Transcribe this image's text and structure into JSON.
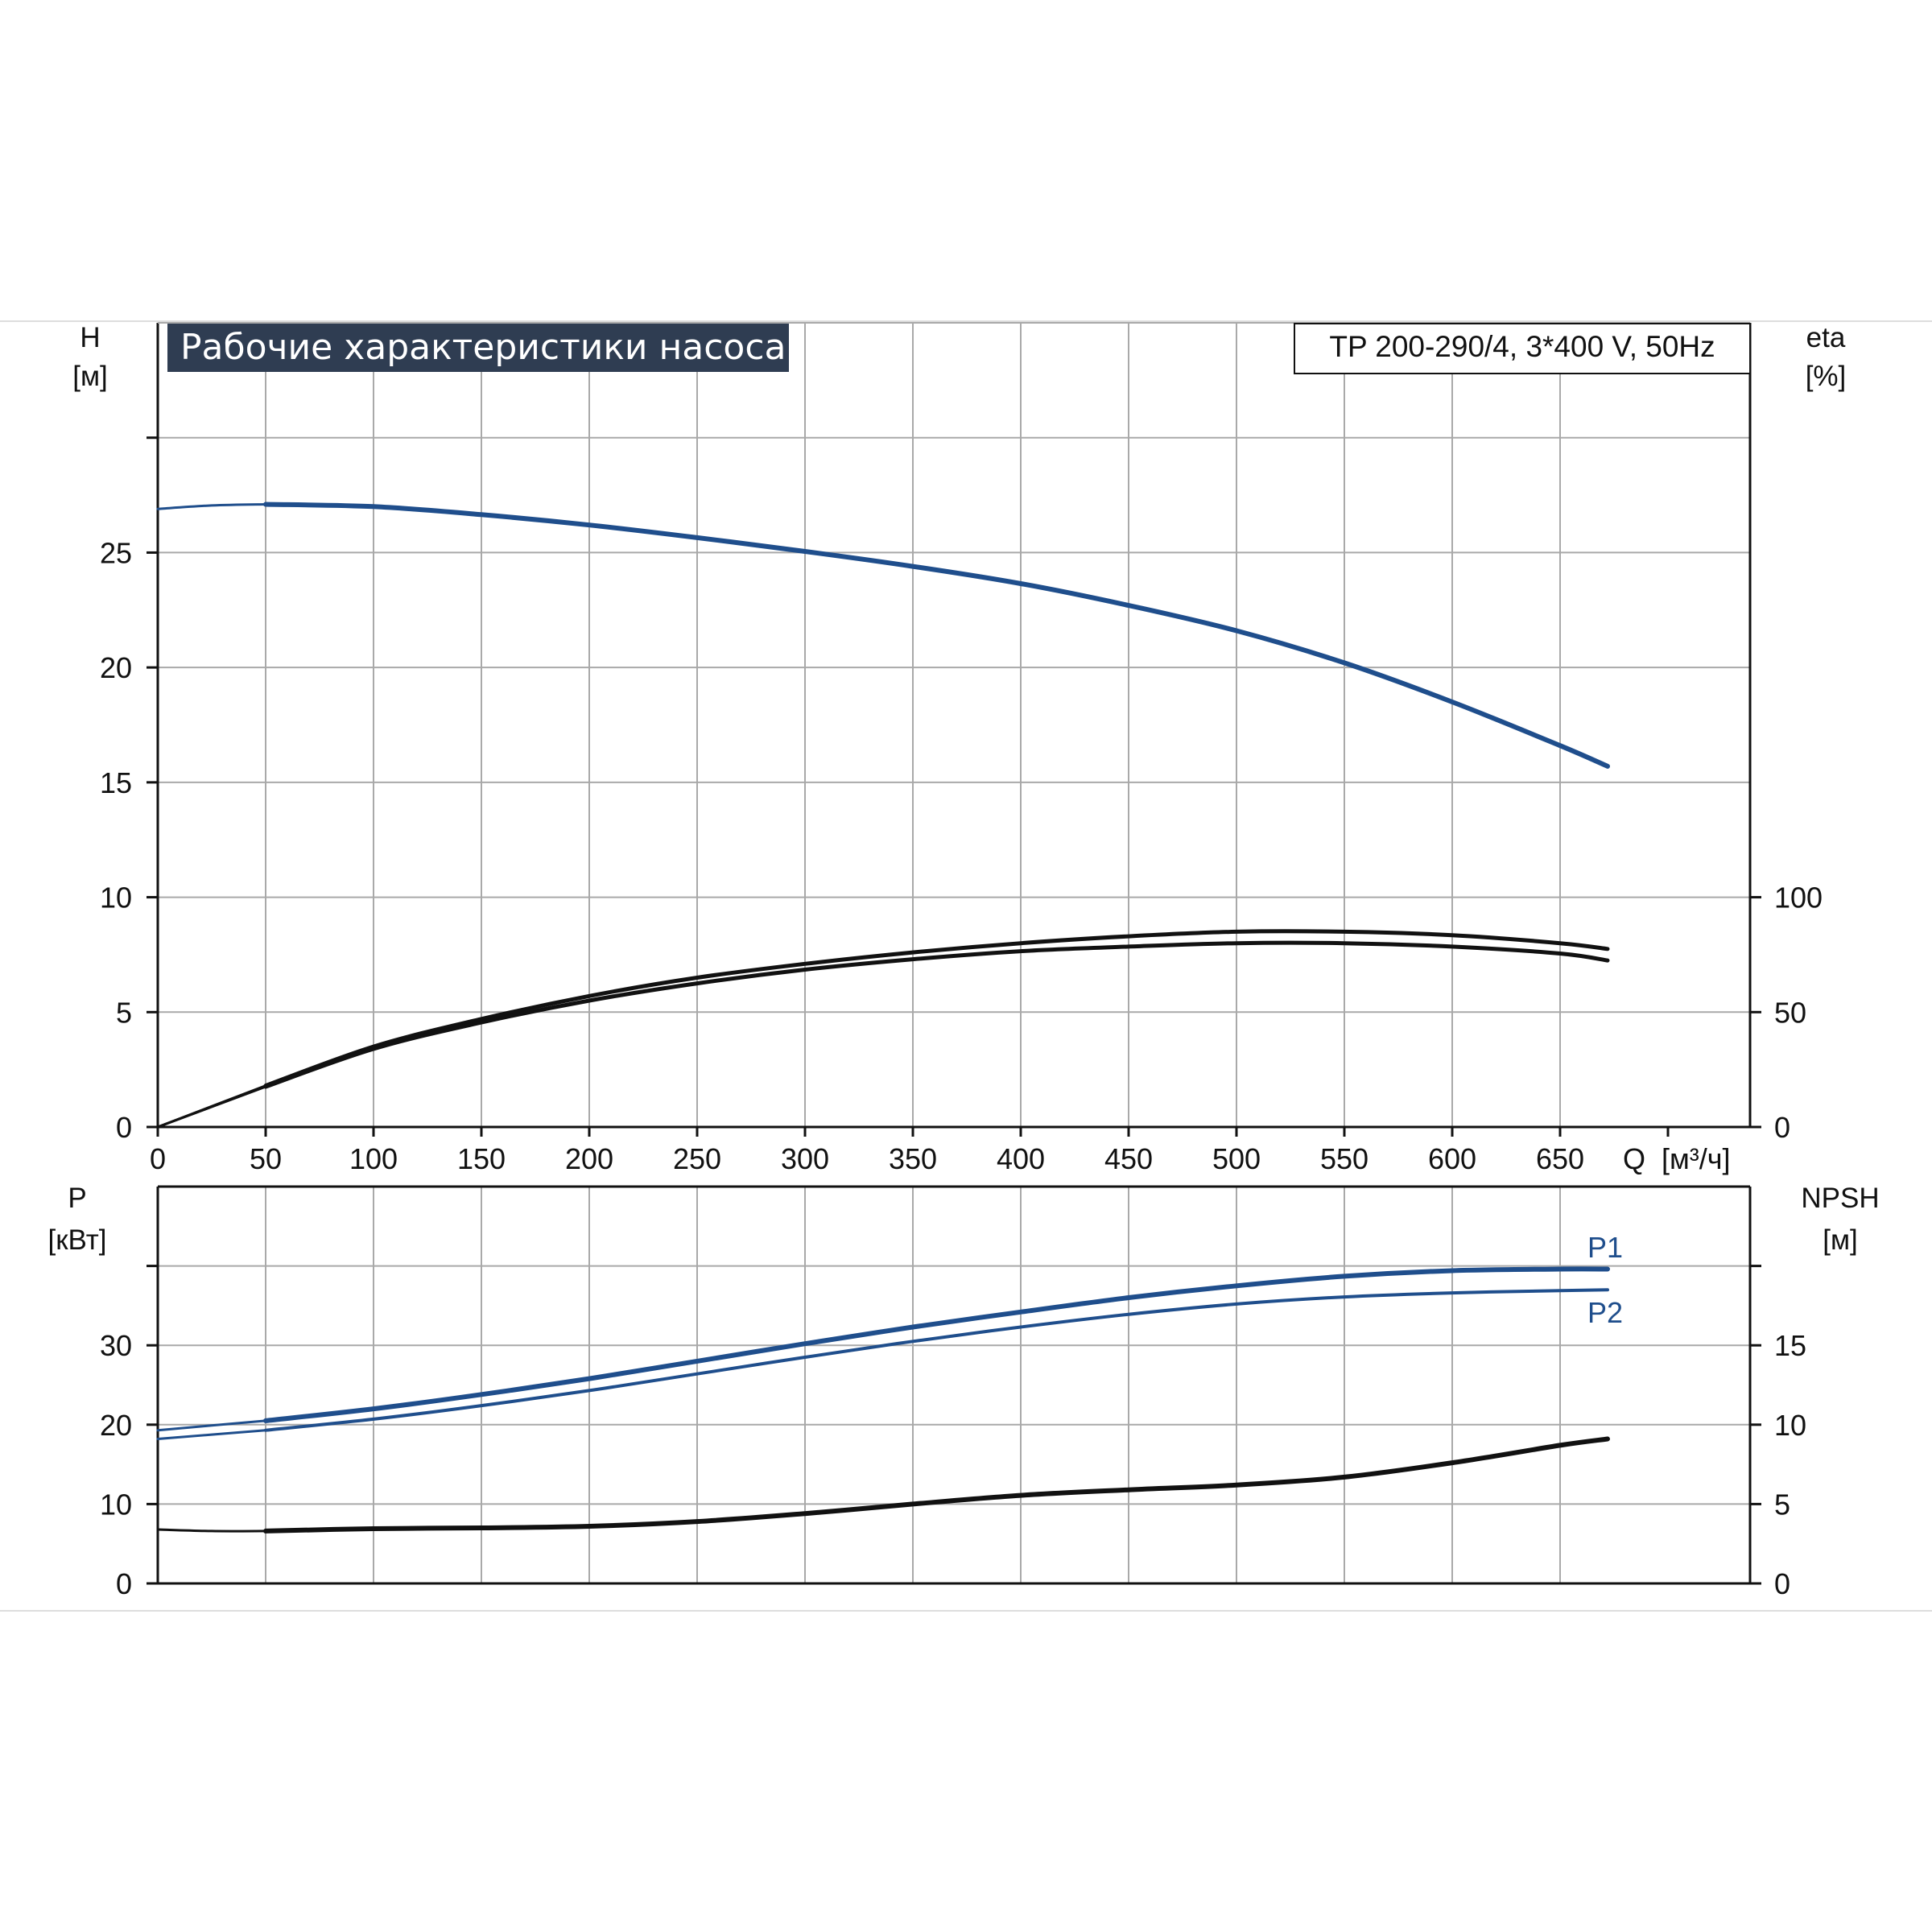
{
  "colors": {
    "blue": "#1f4e8c",
    "black": "#111111",
    "grid": "#a9a9a9",
    "title_bg": "#2f3d52",
    "title_fg": "#ffffff",
    "frame_line": "#dddddd"
  },
  "chart_data": [
    {
      "type": "line",
      "panel": "upper",
      "title": "Рабочие характеристики насоса",
      "model": "TP 200-290/4, 3*400 V, 50Hz",
      "xlabel": "Q [м³/ч]",
      "xlabel_parts": {
        "q": "Q",
        "unit": "[м³/ч]"
      },
      "xlim": [
        0,
        700
      ],
      "x_ticks": [
        "0",
        "50",
        "100",
        "150",
        "200",
        "250",
        "300",
        "350",
        "400",
        "450",
        "500",
        "550",
        "600",
        "650"
      ],
      "y_left": {
        "label": "H",
        "unit": "[м]",
        "lim": [
          0,
          35
        ],
        "ticks": [
          "0",
          "5",
          "10",
          "15",
          "20",
          "25"
        ]
      },
      "y_right": {
        "label": "eta",
        "unit": "[%]",
        "lim": [
          0,
          350
        ],
        "ticks": [
          "0",
          "50",
          "100"
        ]
      },
      "grid": true,
      "series": [
        {
          "id": "H",
          "axis": "left",
          "color": "blue",
          "x": [
            0,
            25,
            50,
            100,
            150,
            200,
            250,
            300,
            350,
            400,
            450,
            500,
            550,
            600,
            650,
            672
          ],
          "y": [
            26.9,
            27.05,
            27.1,
            27.0,
            26.65,
            26.2,
            25.65,
            25.05,
            24.4,
            23.65,
            22.7,
            21.6,
            20.2,
            18.5,
            16.6,
            15.7
          ]
        },
        {
          "id": "eta1",
          "axis": "right",
          "color": "black",
          "x": [
            0,
            50,
            100,
            150,
            200,
            250,
            300,
            350,
            400,
            450,
            500,
            550,
            600,
            650,
            672
          ],
          "y": [
            0,
            18,
            35,
            47,
            57,
            65,
            71,
            76,
            80,
            83,
            85,
            85,
            83.5,
            80,
            77.5
          ]
        },
        {
          "id": "eta2",
          "axis": "right",
          "color": "black",
          "x": [
            0,
            50,
            100,
            150,
            200,
            250,
            300,
            350,
            400,
            450,
            500,
            550,
            600,
            650,
            672
          ],
          "y": [
            0,
            17.5,
            34,
            45.5,
            55,
            62.5,
            68.5,
            73,
            76.5,
            78.5,
            80,
            80,
            78.5,
            75.5,
            72.5
          ]
        }
      ]
    },
    {
      "type": "line",
      "panel": "lower",
      "xlim": [
        0,
        700
      ],
      "y_left": {
        "label": "P",
        "unit": "[кВт]",
        "lim": [
          0,
          50
        ],
        "ticks": [
          "0",
          "10",
          "20",
          "30"
        ]
      },
      "y_right": {
        "label": "NPSH",
        "unit": "[м]",
        "lim": [
          0,
          25
        ],
        "ticks": [
          "0",
          "5",
          "10",
          "15"
        ]
      },
      "grid": true,
      "series": [
        {
          "id": "P1",
          "name": "P1",
          "axis": "left",
          "color": "blue",
          "x": [
            0,
            50,
            100,
            150,
            200,
            250,
            300,
            350,
            400,
            450,
            500,
            550,
            600,
            650,
            672
          ],
          "y": [
            19.3,
            20.5,
            22.0,
            23.8,
            25.8,
            28.0,
            30.2,
            32.3,
            34.2,
            36.0,
            37.5,
            38.7,
            39.4,
            39.6,
            39.6
          ]
        },
        {
          "id": "P2",
          "name": "P2",
          "axis": "left",
          "color": "blue",
          "x": [
            0,
            50,
            100,
            150,
            200,
            250,
            300,
            350,
            400,
            450,
            500,
            550,
            600,
            650,
            672
          ],
          "y": [
            18.2,
            19.3,
            20.7,
            22.4,
            24.3,
            26.4,
            28.5,
            30.5,
            32.3,
            33.9,
            35.2,
            36.1,
            36.6,
            36.9,
            37.0
          ]
        },
        {
          "id": "NPSH",
          "axis": "right",
          "color": "black",
          "x": [
            0,
            25,
            50,
            100,
            150,
            200,
            250,
            300,
            350,
            400,
            450,
            500,
            550,
            600,
            650,
            672
          ],
          "y": [
            3.4,
            3.3,
            3.3,
            3.45,
            3.5,
            3.6,
            3.9,
            4.4,
            5.0,
            5.55,
            5.9,
            6.2,
            6.7,
            7.6,
            8.7,
            9.1
          ]
        }
      ]
    }
  ]
}
